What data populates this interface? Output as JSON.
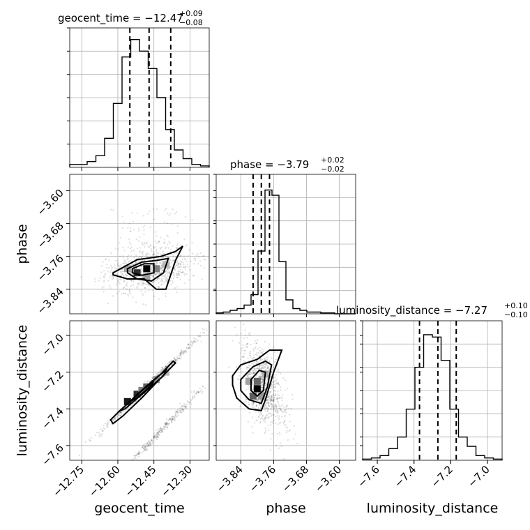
{
  "chart_data": {
    "type": "corner",
    "parameters": [
      {
        "name": "geocent_time",
        "title_main": "geocent_time = −12.47",
        "sup": "+0.09",
        "sub": "−0.08",
        "range": [
          -12.8,
          -12.22
        ],
        "ticks": [
          -12.75,
          -12.6,
          -12.45,
          -12.3
        ],
        "tick_labels": [
          "−12.75",
          "−12.60",
          "−12.45",
          "−12.30"
        ],
        "axis_label": "geocent_time",
        "quantiles": [
          -12.55,
          -12.47,
          -12.38
        ],
        "hist": [
          1,
          1,
          2,
          4,
          10,
          22,
          38,
          44,
          40,
          34,
          24,
          13,
          6,
          3,
          1,
          0.5
        ],
        "hist_max": 48
      },
      {
        "name": "phase",
        "title_main": "phase = −3.79",
        "sup": "+0.02",
        "sub": "−0.02",
        "range": [
          -3.9,
          -3.56
        ],
        "ticks": [
          -3.84,
          -3.76,
          -3.68,
          -3.6
        ],
        "tick_labels": [
          "−3.84",
          "−3.76",
          "−3.68",
          "−3.60"
        ],
        "axis_label": "phase",
        "quantiles": [
          -3.81,
          -3.79,
          -3.77
        ],
        "hist": [
          0.5,
          1,
          2,
          3,
          5,
          11,
          36,
          71,
          68,
          30,
          8,
          3,
          2,
          1,
          1,
          0.5,
          0.5,
          0,
          0,
          0
        ],
        "hist_max": 80
      },
      {
        "name": "luminosity_distance",
        "title_main": "luminosity_distance = −7.27",
        "sup": "+0.10",
        "sub": "−0.10",
        "range": [
          -7.68,
          -6.92
        ],
        "ticks": [
          -7.6,
          -7.4,
          -7.2,
          -7.0
        ],
        "tick_labels": [
          "−7.6",
          "−7.4",
          "−7.2",
          "−7.0"
        ],
        "axis_label": "luminosity_distance",
        "quantiles": [
          -7.37,
          -7.27,
          -7.17
        ],
        "hist": [
          0.5,
          1,
          2,
          5,
          10,
          22,
          40,
          54,
          53,
          43,
          22,
          10,
          6,
          2,
          1,
          0.5
        ],
        "hist_max": 60
      }
    ],
    "y_tick_labels_left": {
      "phase": [
        "−3.60",
        "−3.68",
        "−3.76",
        "−3.84"
      ],
      "luminosity_distance": [
        "−7.0",
        "−7.2",
        "−7.4",
        "−7.6"
      ]
    },
    "grid": true
  }
}
